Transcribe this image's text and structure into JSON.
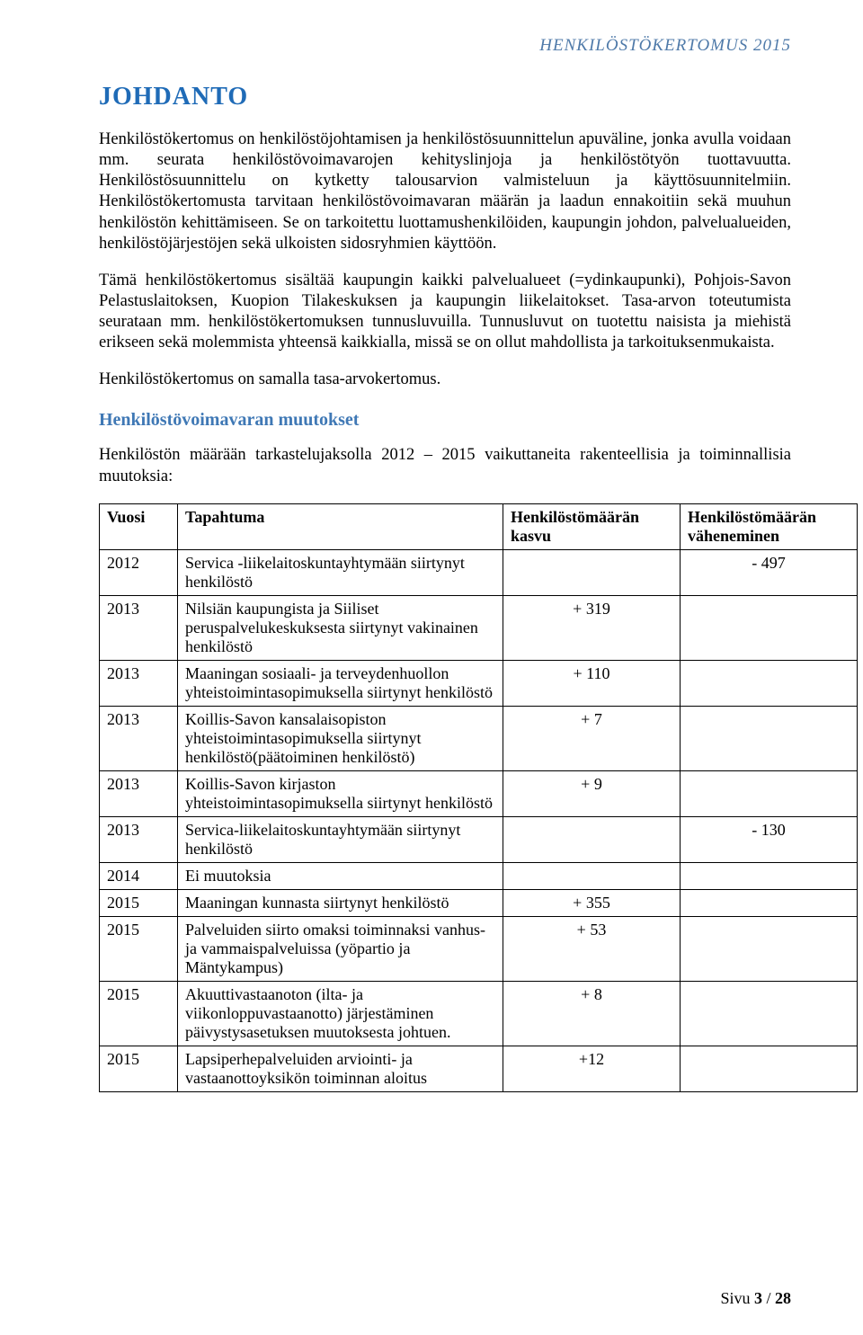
{
  "header": {
    "doc_title": "HENKILÖSTÖKERTOMUS 2015"
  },
  "section": {
    "title": "JOHDANTO",
    "para1": "Henkilöstökertomus on henkilöstöjohtamisen ja henkilöstösuunnittelun apuväline, jonka avulla voidaan mm. seurata henkilöstövoimavarojen kehityslinjoja ja henkilöstötyön tuottavuutta. Henkilöstösuunnittelu on kytketty talousarvion valmisteluun ja käyttösuunnitelmiin. Henkilöstökertomusta tarvitaan henkilöstövoimavaran määrän ja laadun ennakoitiin sekä muuhun henkilöstön kehittämiseen. Se on tarkoitettu luottamushenkilöiden, kaupungin johdon, palvelualueiden, henkilöstöjärjestöjen sekä ulkoisten sidosryhmien käyttöön.",
    "para2": "Tämä henkilöstökertomus sisältää kaupungin kaikki palvelualueet (=ydinkaupunki), Pohjois-Savon Pelastuslaitoksen, Kuopion Tilakeskuksen ja kaupungin liikelaitokset. Tasa-arvon toteutumista seurataan mm. henkilöstökertomuksen tunnusluvuilla. Tunnusluvut on tuotettu naisista ja miehistä erikseen sekä molemmista yhteensä kaikkialla, missä se on ollut mahdollista ja tarkoituksenmukaista.",
    "para3": "Henkilöstökertomus on samalla tasa-arvokertomus."
  },
  "subsection": {
    "title": "Henkilöstövoimavaran muutokset",
    "intro": "Henkilöstön määrään tarkastelujaksolla 2012 – 2015 vaikuttaneita rakenteellisia ja toiminnallisia muutoksia:"
  },
  "table": {
    "headers": {
      "year": "Vuosi",
      "event": "Tapahtuma",
      "growth": "Henkilöstömäärän kasvu",
      "decrease": "Henkilöstömäärän väheneminen"
    },
    "rows": [
      {
        "year": "2012",
        "event": "Servica -liikelaitoskuntayhtymään siirtynyt henkilöstö",
        "growth": "",
        "decrease": "-    497"
      },
      {
        "year": "2013",
        "event": "Nilsiän kaupungista ja Siiliset peruspalvelukeskuksesta siirtynyt vakinainen henkilöstö",
        "growth": "+ 319",
        "decrease": ""
      },
      {
        "year": "2013",
        "event": "Maaningan sosiaali- ja terveydenhuollon yhteistoimintasopimuksella siirtynyt henkilöstö",
        "growth": "+ 110",
        "decrease": ""
      },
      {
        "year": "2013",
        "event": "Koillis-Savon kansalaisopiston yhteistoimintasopimuksella siirtynyt henkilöstö(päätoiminen henkilöstö)",
        "growth": "+ 7",
        "decrease": ""
      },
      {
        "year": "2013",
        "event": "Koillis-Savon kirjaston yhteistoimintasopimuksella siirtynyt henkilöstö",
        "growth": "+ 9",
        "decrease": ""
      },
      {
        "year": "2013",
        "event": "Servica-liikelaitoskuntayhtymään siirtynyt henkilöstö",
        "growth": "",
        "decrease": "-    130"
      },
      {
        "year": "2014",
        "event": "Ei muutoksia",
        "growth": "",
        "decrease": ""
      },
      {
        "year": "2015",
        "event": "Maaningan kunnasta siirtynyt henkilöstö",
        "growth": "+ 355",
        "decrease": ""
      },
      {
        "year": "2015",
        "event": "Palveluiden siirto omaksi toiminnaksi vanhus- ja vammaispalveluissa (yöpartio ja Mäntykampus)",
        "growth": "+ 53",
        "decrease": ""
      },
      {
        "year": "2015",
        "event": "Akuuttivastaanoton (ilta- ja viikonloppuvastaanotto) järjestäminen päivystysasetuksen muutoksesta johtuen.",
        "growth": "+ 8",
        "decrease": ""
      },
      {
        "year": "2015",
        "event": "Lapsiperhepalveluiden arviointi- ja vastaanottoyksikön toiminnan aloitus",
        "growth": "+12",
        "decrease": ""
      }
    ]
  },
  "footer": {
    "page_label": "Sivu ",
    "page_num": "3",
    "sep": " / ",
    "total": "28"
  }
}
